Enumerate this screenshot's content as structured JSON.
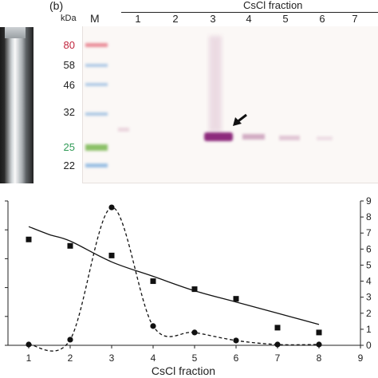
{
  "panel_b": {
    "label": "(b)",
    "kda_label": "kDa",
    "marker_label": "M",
    "fraction_title": "CsCl fraction",
    "lane_numbers": [
      "1",
      "2",
      "3",
      "4",
      "5",
      "6",
      "7"
    ],
    "mw_markers": [
      {
        "value": "80",
        "color": "#c0243c"
      },
      {
        "value": "58",
        "color": "#222222"
      },
      {
        "value": "46",
        "color": "#222222"
      },
      {
        "value": "32",
        "color": "#222222"
      },
      {
        "value": "25",
        "color": "#2f9a55"
      },
      {
        "value": "22",
        "color": "#222222"
      }
    ]
  },
  "chart_data": {
    "type": "scatter",
    "xlabel": "CsCl fraction",
    "x_ticks": [
      1,
      2,
      3,
      4,
      5,
      6,
      7,
      8,
      9
    ],
    "right_y_ticks": [
      0,
      1,
      2,
      3,
      4,
      5,
      6,
      7,
      8,
      9
    ],
    "left_y_ticks": [
      "",
      "",
      "",
      "",
      "",
      ""
    ],
    "xlim": [
      0.5,
      9
    ],
    "right_ylim": [
      0,
      9
    ],
    "series": [
      {
        "marker": "square",
        "x": [
          1,
          2,
          3,
          4,
          5,
          6,
          7,
          8
        ],
        "y": [
          6.6,
          6.2,
          5.6,
          4.0,
          3.5,
          2.9,
          1.1,
          0.8
        ]
      },
      {
        "marker": "circle",
        "line": "dashed",
        "x": [
          1,
          2,
          3,
          4,
          5,
          6,
          7,
          8
        ],
        "y": [
          0.05,
          0.35,
          8.6,
          1.2,
          0.8,
          0.3,
          0.05,
          0.05
        ]
      },
      {
        "marker": "none",
        "line": "solid",
        "x": [
          1,
          1.5,
          2,
          3,
          4,
          5,
          6,
          7,
          8
        ],
        "y": [
          7.4,
          6.9,
          6.5,
          5.2,
          4.3,
          3.4,
          2.7,
          2.0,
          1.3
        ]
      }
    ]
  }
}
